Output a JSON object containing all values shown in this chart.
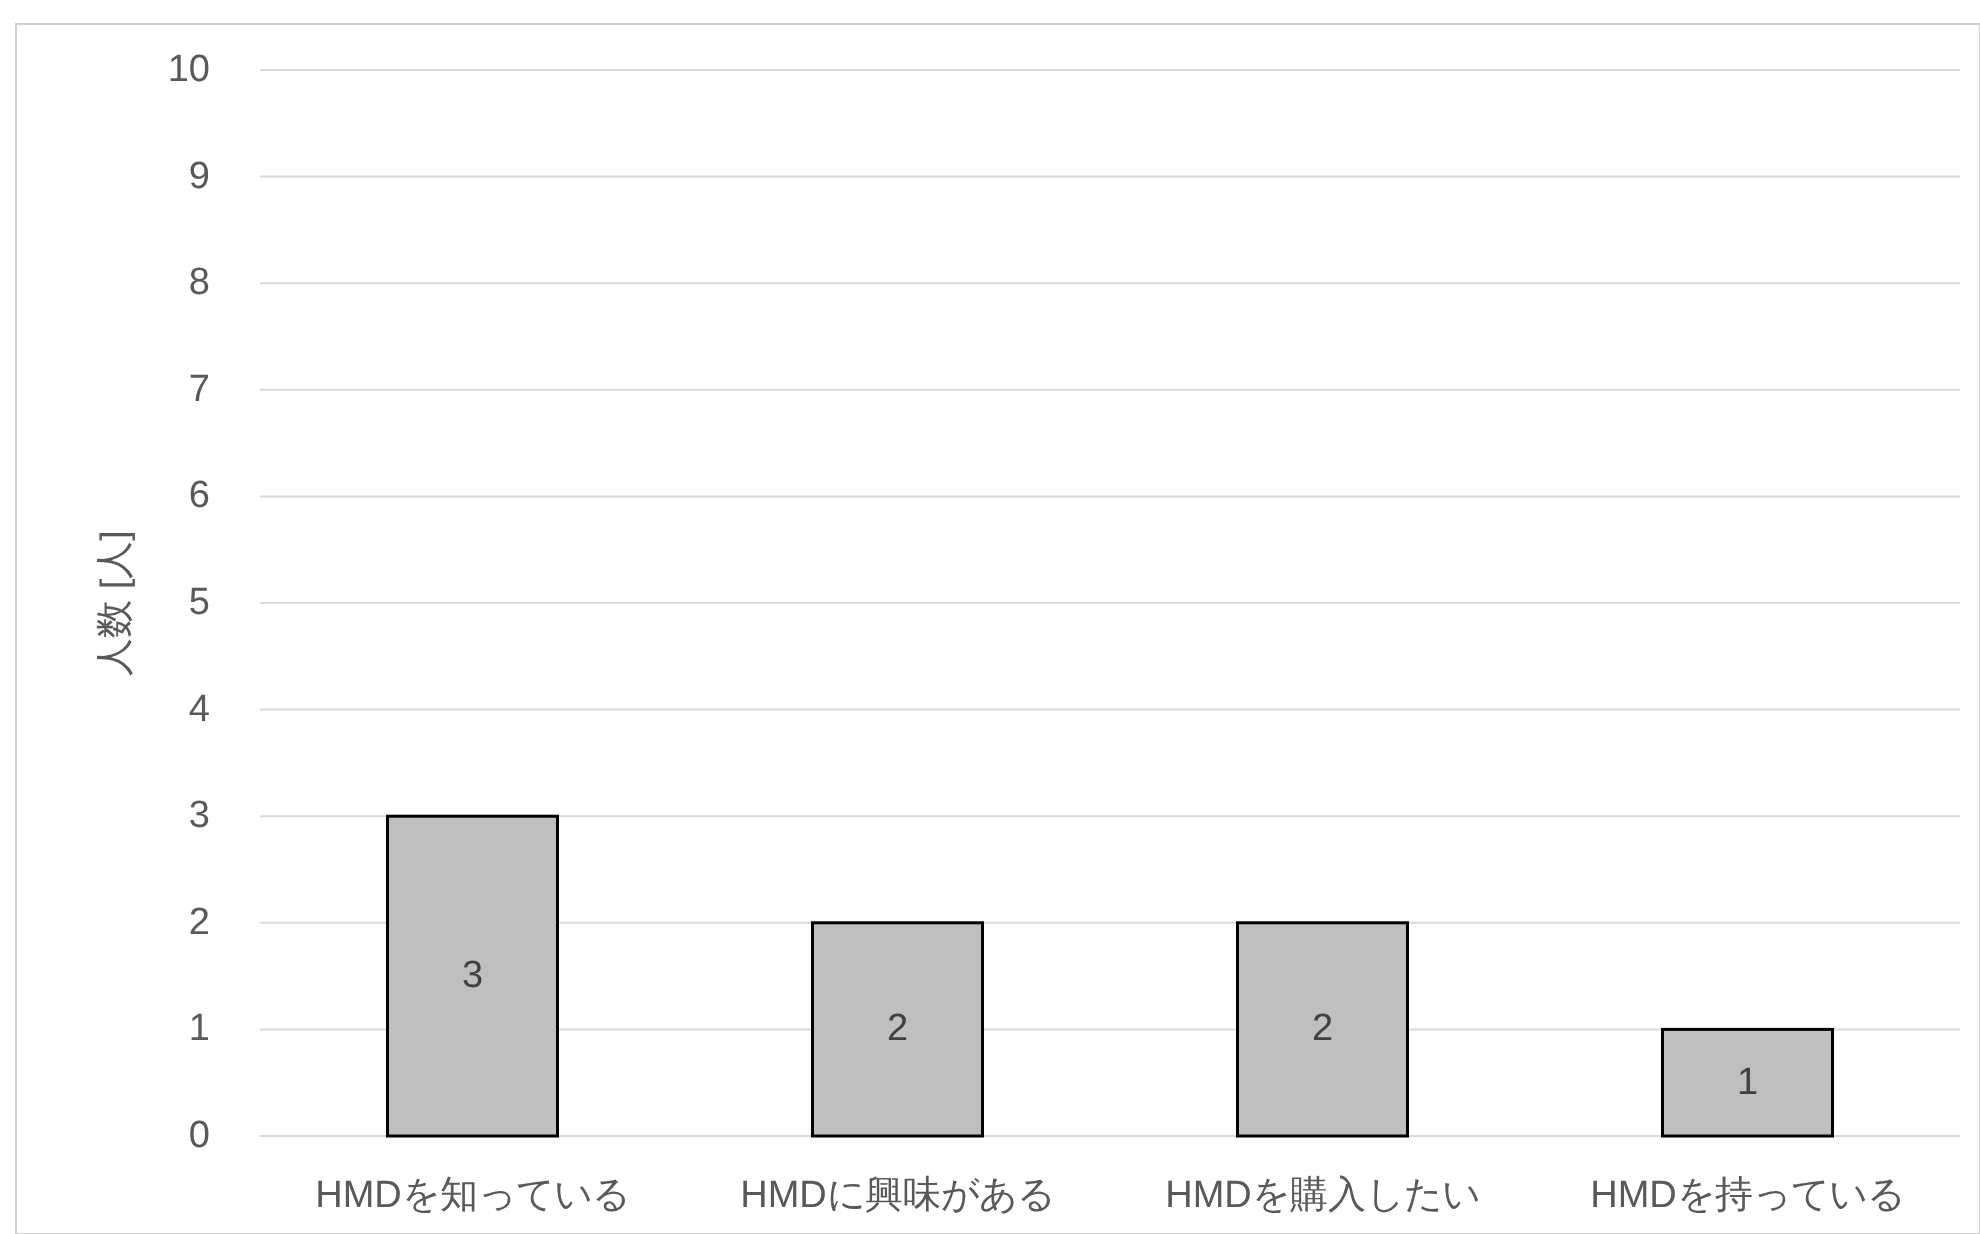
{
  "chart_data": {
    "type": "bar",
    "categories": [
      "HMDを知っている",
      "HMDに興味がある",
      "HMDを購入したい",
      "HMDを持っている"
    ],
    "values": [
      3,
      2,
      2,
      1
    ],
    "color": "#bfbfbf",
    "ylabel": "人数 [人]",
    "ylim": [
      0,
      10
    ],
    "yticks": [
      0,
      1,
      2,
      3,
      4,
      5,
      6,
      7,
      8,
      9,
      10
    ],
    "grid": "y",
    "data_labels": true
  }
}
